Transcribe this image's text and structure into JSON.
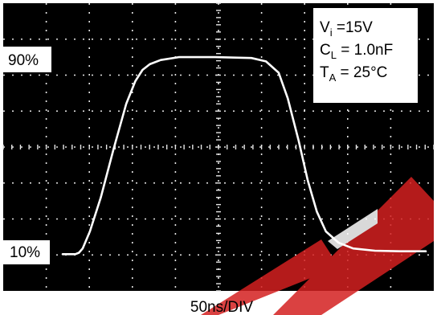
{
  "chart_data": {
    "type": "line",
    "xlabel": "50ns/DIV",
    "divisions": {
      "x": 10,
      "y": 8
    },
    "levels": {
      "high_label": "90%",
      "low_label": "10%"
    },
    "conditions": [
      {
        "symbol": "V",
        "sub": "i",
        "text": " =15V"
      },
      {
        "symbol": "C",
        "sub": "L",
        "text": " = 1.0nF"
      },
      {
        "symbol": "T",
        "sub": "A",
        "text": " = 25°C"
      }
    ],
    "waveform": {
      "x_div": [
        0.0,
        0.35,
        0.45,
        0.55,
        0.75,
        1.05,
        1.4,
        1.75,
        2.0,
        2.2,
        2.4,
        2.7,
        3.2,
        4.2,
        5.2,
        5.6,
        5.95,
        6.2,
        6.5,
        6.75,
        7.0,
        7.25,
        7.6,
        8.0,
        8.6,
        9.3,
        10.0
      ],
      "y_div": [
        0.0,
        0.0,
        0.05,
        0.2,
        0.8,
        2.0,
        3.7,
        5.3,
        6.1,
        6.5,
        6.7,
        6.85,
        6.95,
        6.95,
        6.92,
        6.8,
        6.4,
        5.5,
        4.0,
        2.6,
        1.5,
        0.8,
        0.4,
        0.2,
        0.12,
        0.1,
        0.1
      ]
    },
    "colors": {
      "screen": "#000000",
      "trace": "#ffffff",
      "grid": "#e6e6e6",
      "label_box": "#ffffff",
      "label_text": "#000000",
      "watermark": "#d42020"
    }
  }
}
